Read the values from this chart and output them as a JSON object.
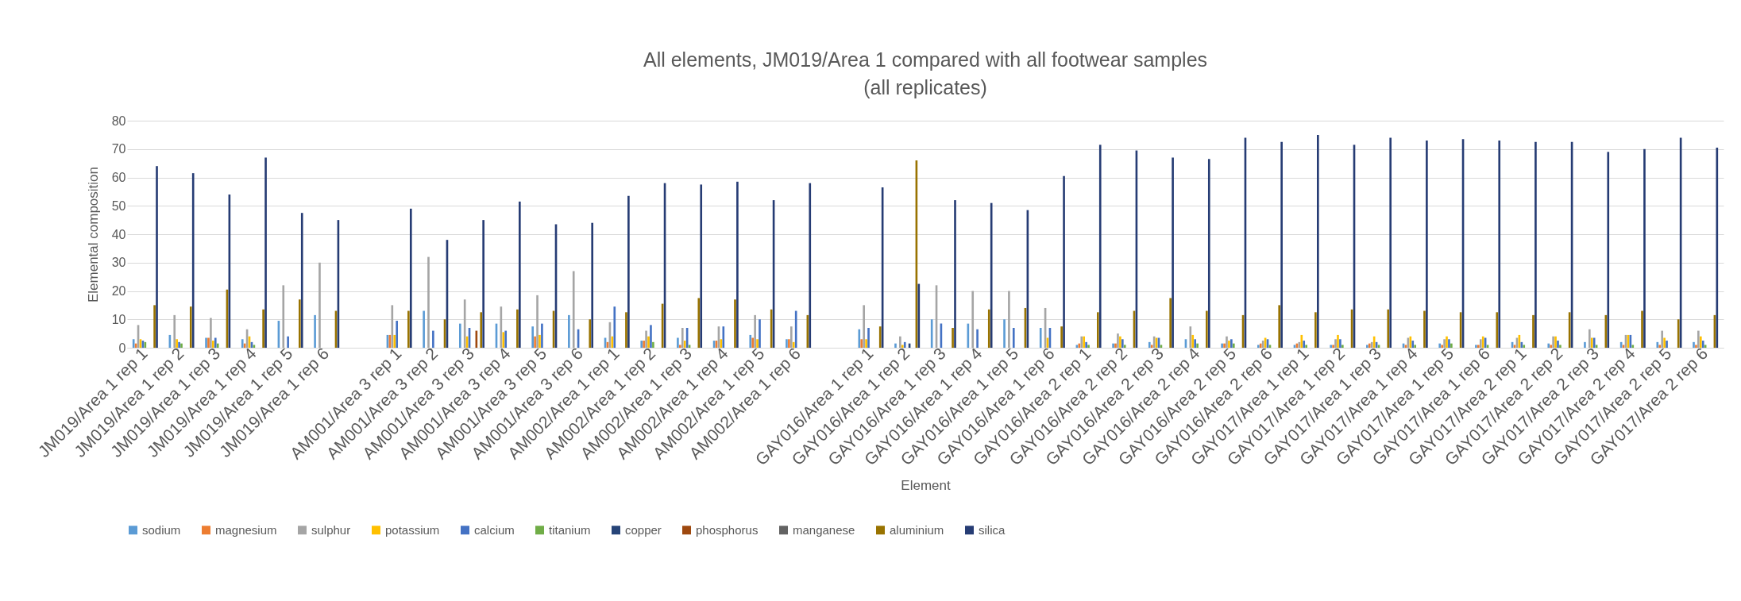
{
  "chart_data": {
    "type": "bar",
    "title": "All elements, JM019/Area 1 compared with all footwear samples",
    "subtitle": "(all replicates)",
    "xlabel": "Element",
    "ylabel": "Elemental composition",
    "categories": [
      "JM019/Area 1 rep 1",
      "JM019/Area 1 rep 2",
      "JM019/Area 1 rep 3",
      "JM019/Area 1 rep 4",
      "JM019/Area 1 rep 5",
      "JM019/Area 1 rep 6",
      null,
      "AM001/Area 3 rep 1",
      "AM001/Area 3 rep 2",
      "AM001/Area 3 rep 3",
      "AM001/Area 3 rep 4",
      "AM001/Area 3 rep 5",
      "AM001/Area 3 rep 6",
      "AM002/Area 1 rep 1",
      "AM002/Area 1 rep 2",
      "AM002/Area 1 rep 3",
      "AM002/Area 1 rep 4",
      "AM002/Area 1 rep 5",
      "AM002/Area 1 rep 6",
      null,
      "GAY016/Area 1 rep 1",
      "GAY016/Area 1 rep 2",
      "GAY016/Area 1 rep 3",
      "GAY016/Area 1 rep 4",
      "GAY016/Area 1 rep 5",
      "GAY016/Area 1 rep 6",
      "GAY016/Area 2 rep 1",
      "GAY016/Area 2 rep 2",
      "GAY016/Area 2 rep 3",
      "GAY016/Area 2 rep 4",
      "GAY016/Area 2 rep 5",
      "GAY016/Area 2 rep 6",
      "GAY017/Area 1 rep 1",
      "GAY017/Area 1 rep 2",
      "GAY017/Area 1 rep 3",
      "GAY017/Area 1 rep 4",
      "GAY017/Area 1 rep 5",
      "GAY017/Area 1 rep 6",
      "GAY017/Area 2 rep 1",
      "GAY017/Area 2 rep 2",
      "GAY017/Area 2 rep 3",
      "GAY017/Area 2 rep 4",
      "GAY017/Area 2 rep 5",
      "GAY017/Area 2 rep 6"
    ],
    "series": [
      {
        "name": "sodium",
        "color": "#5b9bd5",
        "values": [
          3,
          4.5,
          3.5,
          3,
          9.5,
          11.5,
          null,
          4.5,
          13,
          8.5,
          8.5,
          7.5,
          11.5,
          3.5,
          2.5,
          3.5,
          2.5,
          4.5,
          3,
          null,
          6.5,
          1.5,
          10,
          8.5,
          10,
          7,
          1,
          1.5,
          2,
          3,
          1.5,
          1,
          1,
          1,
          1,
          1.5,
          1.5,
          1,
          2,
          1.5,
          2,
          2,
          2,
          2
        ]
      },
      {
        "name": "magnesium",
        "color": "#ed7d31",
        "values": [
          1.5,
          0,
          3.5,
          1.5,
          0,
          0,
          null,
          4.5,
          0,
          0,
          0,
          4,
          0,
          2,
          2.5,
          1,
          2.5,
          3.5,
          3,
          null,
          3,
          0,
          0,
          0,
          0,
          0,
          1.5,
          1.5,
          1,
          0,
          1.5,
          1.5,
          1.5,
          1,
          1.5,
          1,
          1,
          1,
          1,
          1,
          0,
          1,
          1,
          1
        ]
      },
      {
        "name": "sulphur",
        "color": "#a5a5a5",
        "values": [
          8,
          11.5,
          10.5,
          6.5,
          22,
          30,
          null,
          15,
          32,
          17,
          14.5,
          18.5,
          27,
          9,
          6,
          7,
          7.5,
          11.5,
          7.5,
          null,
          15,
          4,
          22,
          20,
          20,
          14,
          4,
          5,
          4,
          7.5,
          4,
          2.5,
          2,
          3,
          2,
          3.5,
          3,
          3,
          3.5,
          4,
          6.5,
          4.5,
          6,
          6
        ]
      },
      {
        "name": "potassium",
        "color": "#ffc000",
        "values": [
          3,
          3,
          2.5,
          4,
          0,
          0,
          null,
          4.5,
          0,
          4,
          5.5,
          4.5,
          0,
          4,
          4,
          2.5,
          3,
          3,
          2,
          null,
          3,
          1,
          0,
          0,
          0,
          3.5,
          4,
          4,
          3.5,
          4.5,
          2.5,
          3.5,
          4.5,
          4.5,
          4,
          4,
          4,
          4,
          4.5,
          4,
          3.5,
          4.5,
          3.5,
          4
        ]
      },
      {
        "name": "calcium",
        "color": "#4472c4",
        "values": [
          2.5,
          2,
          3.5,
          2,
          4,
          0,
          null,
          9.5,
          6,
          7,
          6,
          8.5,
          6.5,
          14.5,
          8,
          7,
          7.5,
          10,
          13,
          null,
          7,
          2,
          8.5,
          6.5,
          7,
          7,
          2,
          3,
          3.5,
          3,
          3,
          3,
          2.5,
          3,
          2,
          2.5,
          3,
          3.5,
          2,
          2.5,
          3.5,
          4.5,
          2.5,
          2.5
        ]
      },
      {
        "name": "titanium",
        "color": "#70ad47",
        "values": [
          2,
          1.5,
          1.5,
          1,
          0,
          0,
          null,
          0,
          0,
          0,
          0,
          0,
          0,
          0,
          2,
          1,
          0,
          0,
          0,
          null,
          0,
          0,
          0,
          0,
          0,
          0,
          1,
          1,
          1,
          1.5,
          1.5,
          1,
          1,
          1,
          1,
          1,
          1.5,
          1,
          1,
          1,
          1,
          1,
          0,
          1
        ]
      },
      {
        "name": "copper",
        "color": "#264478",
        "values": [
          0,
          0,
          0,
          0,
          0,
          0,
          null,
          0,
          0,
          0,
          0,
          0,
          0,
          0,
          0,
          0,
          0,
          0,
          0,
          null,
          0,
          1.5,
          0,
          0,
          0,
          0,
          0,
          0,
          0,
          0,
          0,
          0,
          0,
          0,
          0,
          0,
          0,
          0,
          0,
          0,
          0,
          0,
          0,
          0
        ]
      },
      {
        "name": "phosphorus",
        "color": "#9e480e",
        "values": [
          0,
          0,
          0,
          0,
          0,
          0,
          null,
          0,
          0,
          6,
          0,
          0,
          0,
          0,
          0,
          0,
          0,
          0,
          0,
          null,
          0,
          0,
          0,
          0,
          0,
          0,
          0,
          0,
          0,
          0,
          0,
          0,
          0,
          0,
          0,
          0,
          0,
          0,
          0,
          0,
          0,
          0,
          0,
          0
        ]
      },
      {
        "name": "manganese",
        "color": "#636363",
        "values": [
          0,
          0,
          0,
          0,
          0,
          0,
          null,
          0,
          0,
          0,
          0,
          0,
          0,
          0,
          0,
          0,
          0,
          0,
          0,
          null,
          0,
          0,
          0,
          0,
          0,
          0,
          0,
          0,
          0,
          0,
          0,
          0,
          0,
          0,
          0,
          0,
          0,
          0,
          0,
          0,
          0,
          0,
          0,
          0
        ]
      },
      {
        "name": "aluminium",
        "color": "#997300",
        "values": [
          15,
          14.5,
          20.5,
          13.5,
          17,
          13,
          null,
          13,
          10,
          12.5,
          13.5,
          13,
          10,
          12.5,
          15.5,
          17.5,
          17,
          13.5,
          11.5,
          null,
          7.5,
          66,
          7,
          13.5,
          14,
          7.5,
          12.5,
          13,
          17.5,
          13,
          11.5,
          15,
          12.5,
          13.5,
          13.5,
          13,
          12.5,
          12.5,
          11.5,
          12.5,
          11.5,
          13,
          10,
          11.5
        ]
      },
      {
        "name": "silica",
        "color": "#263c74",
        "values": [
          64,
          61.5,
          54,
          67,
          47.5,
          45,
          null,
          49,
          38,
          45,
          51.5,
          43.5,
          44,
          53.5,
          58,
          57.5,
          58.5,
          52,
          58,
          null,
          56.5,
          22.5,
          52,
          51,
          48.5,
          60.5,
          71.5,
          69.5,
          67,
          66.5,
          74,
          72.5,
          75,
          71.5,
          74,
          73,
          73.5,
          73,
          72.5,
          72.5,
          69,
          70,
          74,
          70.5
        ]
      }
    ],
    "ylim": [
      0,
      80
    ],
    "yticks": [
      0,
      10,
      20,
      30,
      40,
      50,
      60,
      70,
      80
    ],
    "grid": "y",
    "legend": "bottom"
  }
}
